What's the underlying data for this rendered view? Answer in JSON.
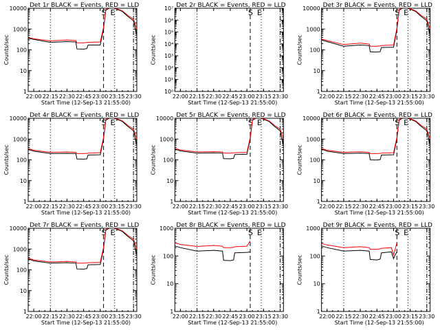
{
  "xlabel": "Start Time (12-Sep-13 21:55:00)",
  "ylabel": "Counts/sec",
  "x_ticks": [
    "22:00",
    "22:15",
    "22:30",
    "22:45",
    "23:00",
    "23:15",
    "23:30"
  ],
  "colors": {
    "events": "#000000",
    "lld": "#ff0000",
    "background": "#ffffff"
  },
  "chart_data": [
    {
      "type": "line",
      "title": "Det 1r BLACK = Events, RED = LLD",
      "xlabel": "Start Time (12-Sep-13 21:55:00)",
      "ylabel": "Counts/sec",
      "xlim": [
        "21:55",
        "23:33"
      ],
      "ylim": [
        1,
        10000
      ],
      "yscale": "log",
      "ytick_labels": [
        "1",
        "10",
        "100",
        "1000",
        "10000"
      ],
      "flag_markers": [
        "S",
        "E"
      ],
      "x": [
        "21:55",
        "22:00",
        "22:15",
        "22:30",
        "22:38",
        "22:39",
        "22:45",
        "22:48",
        "22:49",
        "23:00",
        "23:03",
        "23:05",
        "23:08",
        "23:11",
        "23:15",
        "23:20",
        "23:25",
        "23:30",
        "23:33"
      ],
      "series": [
        {
          "name": "Events",
          "color": "#000000",
          "values": [
            360,
            320,
            230,
            250,
            240,
            110,
            108,
            115,
            170,
            170,
            1000,
            8000,
            10000,
            11000,
            9000,
            7000,
            4000,
            2500,
            500
          ]
        },
        {
          "name": "LLD",
          "color": "#ff0000",
          "values": [
            390,
            340,
            270,
            300,
            280,
            215,
            215,
            225,
            230,
            240,
            1200,
            8500,
            10500,
            11500,
            9500,
            7500,
            4500,
            3000,
            1000
          ]
        }
      ]
    },
    {
      "type": "line",
      "title": "Det 2r BLACK = Events, RED = LLD",
      "xlabel": "Start Time (12-Sep-13 21:55:00)",
      "ylabel": "Counts/sec",
      "xlim": [
        "21:55",
        "23:33"
      ],
      "ylim": [
        1,
        10000000
      ],
      "yscale": "log",
      "ytick_labels": [
        "10⁰",
        "10¹",
        "10²",
        "10³",
        "10⁴",
        "10⁵",
        "10⁶",
        "10⁷"
      ],
      "flag_markers": [
        "S",
        "E"
      ],
      "x": [],
      "series": []
    },
    {
      "type": "line",
      "title": "Det 3r BLACK = Events, RED = LLD",
      "xlabel": "Start Time (12-Sep-13 21:55:00)",
      "ylabel": "Counts/sec",
      "xlim": [
        "21:55",
        "23:33"
      ],
      "ylim": [
        1,
        10000
      ],
      "yscale": "log",
      "ytick_labels": [
        "1",
        "10",
        "100",
        "1000",
        "10000"
      ],
      "flag_markers": [
        "S",
        "E"
      ],
      "x": [
        "21:55",
        "22:00",
        "22:15",
        "22:30",
        "22:38",
        "22:39",
        "22:45",
        "22:48",
        "22:49",
        "23:00",
        "23:03",
        "23:05",
        "23:08",
        "23:11",
        "23:15",
        "23:20",
        "23:25",
        "23:30",
        "23:33"
      ],
      "series": [
        {
          "name": "Events",
          "color": "#000000",
          "values": [
            300,
            250,
            150,
            170,
            160,
            80,
            78,
            82,
            130,
            135,
            900,
            8000,
            10000,
            11000,
            9000,
            7000,
            4000,
            2500,
            500
          ]
        },
        {
          "name": "LLD",
          "color": "#ff0000",
          "values": [
            330,
            280,
            180,
            210,
            190,
            150,
            150,
            155,
            160,
            170,
            1100,
            8500,
            10500,
            11500,
            9500,
            7500,
            4500,
            3000,
            1000
          ]
        }
      ]
    },
    {
      "type": "line",
      "title": "Det 4r BLACK = Events, RED = LLD",
      "xlabel": "Start Time (12-Sep-13 21:55:00)",
      "ylabel": "Counts/sec",
      "xlim": [
        "21:55",
        "23:33"
      ],
      "ylim": [
        1,
        10000
      ],
      "yscale": "log",
      "ytick_labels": [
        "1",
        "10",
        "100",
        "1000",
        "10000"
      ],
      "flag_markers": [
        "S",
        "E"
      ],
      "x": [
        "21:55",
        "22:00",
        "22:15",
        "22:30",
        "22:38",
        "22:39",
        "22:45",
        "22:48",
        "22:49",
        "23:00",
        "23:03",
        "23:05",
        "23:08",
        "23:11",
        "23:15",
        "23:20",
        "23:25",
        "23:30",
        "23:33"
      ],
      "series": [
        {
          "name": "Events",
          "color": "#000000",
          "values": [
            320,
            260,
            200,
            205,
            200,
            110,
            108,
            112,
            170,
            175,
            1000,
            8000,
            10000,
            11000,
            9000,
            7000,
            4000,
            2500,
            500
          ]
        },
        {
          "name": "LLD",
          "color": "#ff0000",
          "values": [
            350,
            290,
            230,
            240,
            230,
            200,
            200,
            205,
            210,
            220,
            1200,
            8500,
            10500,
            11500,
            9500,
            7500,
            4500,
            3000,
            1000
          ]
        }
      ]
    },
    {
      "type": "line",
      "title": "Det 5r BLACK = Events, RED = LLD",
      "xlabel": "Start Time (12-Sep-13 21:55:00)",
      "ylabel": "Counts/sec",
      "xlim": [
        "21:55",
        "23:33"
      ],
      "ylim": [
        1,
        10000
      ],
      "yscale": "log",
      "ytick_labels": [
        "1",
        "10",
        "100",
        "1000",
        "10000"
      ],
      "flag_markers": [
        "S",
        "E"
      ],
      "x": [
        "21:55",
        "22:00",
        "22:15",
        "22:30",
        "22:38",
        "22:39",
        "22:45",
        "22:48",
        "22:49",
        "23:00",
        "23:03",
        "23:05",
        "23:08",
        "23:11",
        "23:15",
        "23:20",
        "23:25",
        "23:30",
        "23:33"
      ],
      "series": [
        {
          "name": "Events",
          "color": "#000000",
          "values": [
            330,
            270,
            210,
            215,
            210,
            115,
            112,
            118,
            180,
            185,
            1000,
            8000,
            10000,
            11000,
            9000,
            7000,
            4000,
            2500,
            500
          ]
        },
        {
          "name": "LLD",
          "color": "#ff0000",
          "values": [
            360,
            300,
            240,
            250,
            240,
            210,
            210,
            215,
            220,
            230,
            1200,
            8500,
            10500,
            11500,
            9500,
            7500,
            4500,
            3000,
            1000
          ]
        }
      ]
    },
    {
      "type": "line",
      "title": "Det 6r BLACK = Events, RED = LLD",
      "xlabel": "Start Time (12-Sep-13 21:55:00)",
      "ylabel": "Counts/sec",
      "xlim": [
        "21:55",
        "23:33"
      ],
      "ylim": [
        1,
        10000
      ],
      "yscale": "log",
      "ytick_labels": [
        "1",
        "10",
        "100",
        "1000",
        "10000"
      ],
      "flag_markers": [
        "S",
        "E"
      ],
      "x": [
        "21:55",
        "22:00",
        "22:15",
        "22:30",
        "22:38",
        "22:39",
        "22:45",
        "22:48",
        "22:49",
        "23:00",
        "23:03",
        "23:05",
        "23:08",
        "23:11",
        "23:15",
        "23:20",
        "23:25",
        "23:30",
        "23:33"
      ],
      "series": [
        {
          "name": "Events",
          "color": "#000000",
          "values": [
            330,
            260,
            200,
            210,
            200,
            100,
            98,
            104,
            170,
            175,
            1000,
            8000,
            10000,
            11000,
            9000,
            7000,
            4000,
            2500,
            500
          ]
        },
        {
          "name": "LLD",
          "color": "#ff0000",
          "values": [
            360,
            290,
            230,
            245,
            230,
            200,
            200,
            205,
            210,
            220,
            1200,
            8500,
            10500,
            11500,
            9500,
            7500,
            4500,
            3000,
            1000
          ]
        }
      ]
    },
    {
      "type": "line",
      "title": "Det 7r BLACK = Events, RED = LLD",
      "xlabel": "Start Time (12-Sep-13 21:55:00)",
      "ylabel": "Counts/sec",
      "xlim": [
        "21:55",
        "23:33"
      ],
      "ylim": [
        1,
        10000
      ],
      "yscale": "log",
      "ytick_labels": [
        "1",
        "10",
        "100",
        "1000",
        "10000"
      ],
      "flag_markers": [
        "S",
        "E"
      ],
      "x": [
        "21:55",
        "22:00",
        "22:15",
        "22:30",
        "22:38",
        "22:39",
        "22:45",
        "22:48",
        "22:49",
        "23:00",
        "23:03",
        "23:05",
        "23:08",
        "23:11",
        "23:15",
        "23:20",
        "23:25",
        "23:30",
        "23:33"
      ],
      "series": [
        {
          "name": "Events",
          "color": "#000000",
          "values": [
            340,
            270,
            210,
            220,
            210,
            110,
            108,
            115,
            175,
            180,
            1000,
            8000,
            10000,
            11000,
            9000,
            7000,
            4000,
            2500,
            500
          ]
        },
        {
          "name": "LLD",
          "color": "#ff0000",
          "values": [
            370,
            300,
            240,
            255,
            240,
            210,
            210,
            215,
            220,
            230,
            1200,
            8500,
            10500,
            11500,
            9500,
            7500,
            4500,
            3000,
            1000
          ]
        }
      ]
    },
    {
      "type": "line",
      "title": "Det 8r BLACK = Events, RED = LLD",
      "xlabel": "Start Time (12-Sep-13 21:55:00)",
      "ylabel": "Counts/sec",
      "xlim": [
        "21:55",
        "23:33"
      ],
      "ylim": [
        1,
        1000
      ],
      "yscale": "log",
      "ytick_labels": [
        "1",
        "10",
        "100",
        "1000"
      ],
      "flag_markers": [
        "S",
        "E"
      ],
      "x": [
        "21:55",
        "22:00",
        "22:15",
        "22:30",
        "22:38",
        "22:39",
        "22:45",
        "22:48",
        "22:49",
        "23:00",
        "23:03"
      ],
      "series": [
        {
          "name": "Events",
          "color": "#000000",
          "values": [
            230,
            200,
            150,
            160,
            150,
            70,
            68,
            72,
            130,
            135,
            140
          ]
        },
        {
          "name": "LLD",
          "color": "#ff0000",
          "values": [
            300,
            260,
            220,
            240,
            225,
            200,
            200,
            205,
            215,
            225,
            350
          ]
        }
      ]
    },
    {
      "type": "line",
      "title": "Det 9r BLACK = Events, RED = LLD",
      "xlabel": "Start Time (12-Sep-13 21:55:00)",
      "ylabel": "Counts/sec",
      "xlim": [
        "21:55",
        "23:33"
      ],
      "ylim": [
        1,
        1000
      ],
      "yscale": "log",
      "ytick_labels": [
        "1",
        "10",
        "100",
        "1000"
      ],
      "flag_markers": [
        "S",
        "E"
      ],
      "x": [
        "21:55",
        "22:00",
        "22:15",
        "22:30",
        "22:38",
        "22:39",
        "22:45",
        "22:48",
        "22:49",
        "22:58",
        "23:00",
        "23:01",
        "23:03"
      ],
      "series": [
        {
          "name": "Events",
          "color": "#000000",
          "values": [
            230,
            200,
            150,
            160,
            150,
            75,
            72,
            78,
            130,
            140,
            80,
            100,
            140
          ]
        },
        {
          "name": "LLD",
          "color": "#ff0000",
          "values": [
            280,
            250,
            200,
            215,
            200,
            175,
            175,
            180,
            190,
            200,
            110,
            150,
            300
          ]
        }
      ]
    }
  ]
}
